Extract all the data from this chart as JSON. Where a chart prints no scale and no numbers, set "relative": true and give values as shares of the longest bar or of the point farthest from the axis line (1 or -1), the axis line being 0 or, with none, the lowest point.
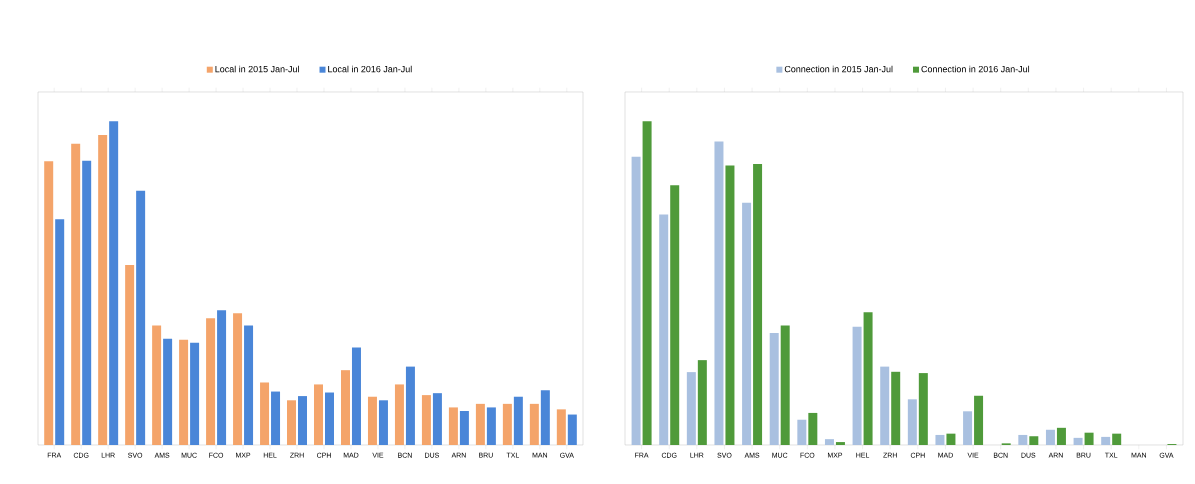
{
  "chart_data": [
    {
      "type": "bar",
      "relative": true,
      "legend": "top",
      "categories": [
        "FRA",
        "CDG",
        "LHR",
        "SVO",
        "AMS",
        "MUC",
        "FCO",
        "MXP",
        "HEL",
        "ZRH",
        "CPH",
        "MAD",
        "VIE",
        "BCN",
        "DUS",
        "ARN",
        "BRU",
        "TXL",
        "MAN",
        "GVA"
      ],
      "series": [
        {
          "name": "Local in 2015 Jan-Jul",
          "color": "#f4a46a",
          "values": [
            0.876,
            0.93,
            0.957,
            0.556,
            0.369,
            0.325,
            0.391,
            0.407,
            0.193,
            0.138,
            0.187,
            0.231,
            0.149,
            0.187,
            0.154,
            0.116,
            0.127,
            0.127,
            0.127,
            0.11
          ]
        },
        {
          "name": "Local in 2016 Jan-Jul",
          "color": "#4a86d8",
          "values": [
            0.697,
            0.878,
            1.0,
            0.785,
            0.328,
            0.316,
            0.416,
            0.369,
            0.165,
            0.151,
            0.162,
            0.301,
            0.138,
            0.242,
            0.16,
            0.105,
            0.116,
            0.149,
            0.169,
            0.094
          ]
        }
      ]
    },
    {
      "type": "bar",
      "relative": true,
      "legend": "top",
      "categories": [
        "FRA",
        "CDG",
        "LHR",
        "SVO",
        "AMS",
        "MUC",
        "FCO",
        "MXP",
        "HEL",
        "ZRH",
        "CPH",
        "MAD",
        "VIE",
        "BCN",
        "DUS",
        "ARN",
        "BRU",
        "TXL",
        "MAN",
        "GVA"
      ],
      "series": [
        {
          "name": "Connection in 2015 Jan-Jul",
          "color": "#a9c0e0",
          "values": [
            0.89,
            0.712,
            0.225,
            0.937,
            0.748,
            0.346,
            0.078,
            0.018,
            0.365,
            0.242,
            0.141,
            0.031,
            0.104,
            null,
            0.031,
            0.047,
            0.022,
            0.025,
            null,
            null
          ]
        },
        {
          "name": "Connection in 2016 Jan-Jul",
          "color": "#4f9a3a",
          "values": [
            1.0,
            0.802,
            0.262,
            0.863,
            0.868,
            0.369,
            0.099,
            0.009,
            0.41,
            0.226,
            0.222,
            0.035,
            0.152,
            0.005,
            0.027,
            0.053,
            0.038,
            0.035,
            null,
            0.003
          ]
        }
      ]
    }
  ]
}
